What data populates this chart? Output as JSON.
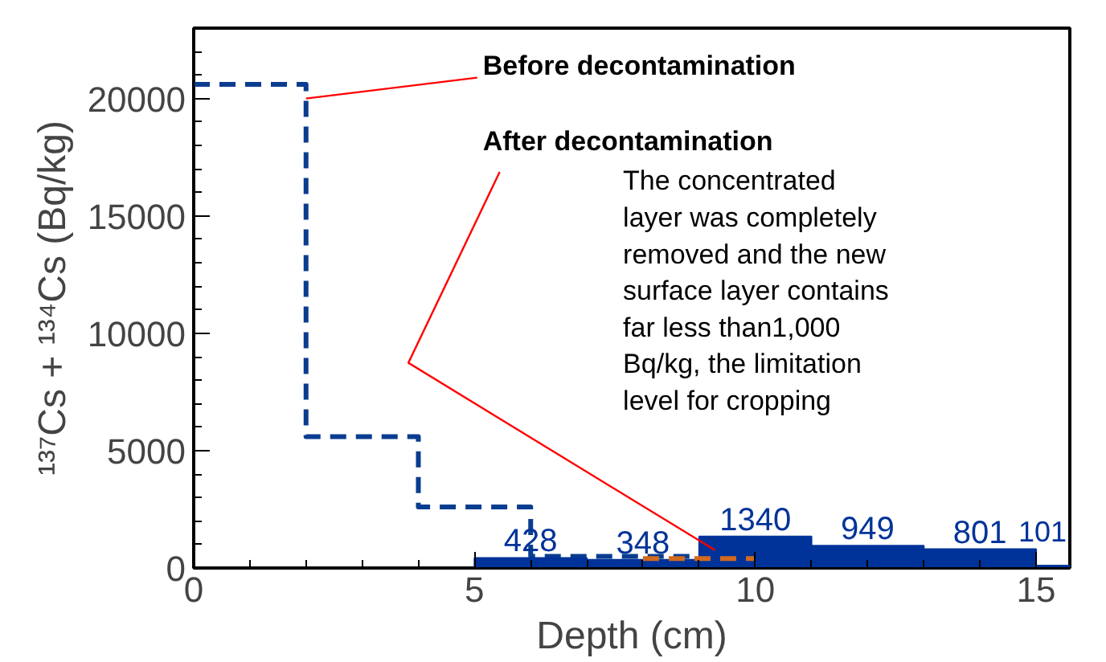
{
  "chart_data": {
    "type": "step",
    "xlabel": "Depth (cm)",
    "ylabel": "¹³⁷Cs + ¹³⁴Cs (Bq/kg)",
    "xlim": [
      0,
      15.6
    ],
    "ylim": [
      0,
      23000
    ],
    "xticks": [
      0,
      5,
      10,
      15
    ],
    "yticks": [
      0,
      5000,
      10000,
      15000,
      20000
    ],
    "grid": false,
    "series": [
      {
        "line_style": "dashed",
        "color": "#0a3d8f",
        "x": [
          0,
          2,
          4,
          6,
          9
        ],
        "values": [
          20600,
          5600,
          2600,
          500,
          500
        ]
      },
      {
        "type": "histogram",
        "color": "#003399",
        "bins": [
          5,
          7,
          9,
          11,
          13,
          15,
          15.6
        ],
        "values": [
          428,
          348,
          1340,
          949,
          801,
          101
        ],
        "data_labels": true
      },
      {
        "type": "step",
        "line_style": "dashed",
        "color": "#d2691e",
        "x": [
          8,
          10
        ],
        "values": [
          400,
          400
        ]
      }
    ],
    "annotations": [
      {
        "text": "Before decontamination",
        "x": 2,
        "y": 20000
      },
      "After decontamination",
      "The concentrated\nlayer was completely\nremoved and the new\nsurface layer contains\nfar less than1,000\nBq/kg, the limitation\nlevel for cropping"
    ]
  }
}
